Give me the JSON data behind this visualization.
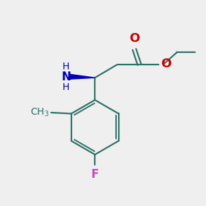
{
  "bg_color": "#efefef",
  "bond_color": "#2d7065",
  "O_color": "#cc0000",
  "N_color": "#0000bb",
  "F_color": "#cc44cc",
  "line_width": 1.6,
  "font_size_atoms": 11,
  "font_size_small": 9,
  "xlim": [
    0,
    10
  ],
  "ylim": [
    0,
    10
  ]
}
